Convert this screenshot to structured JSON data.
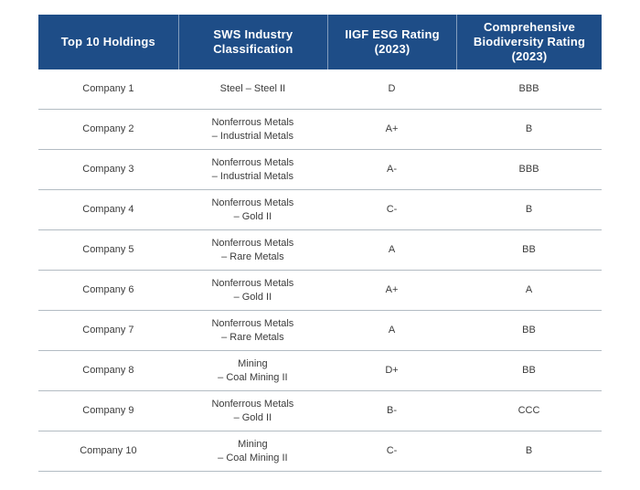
{
  "chart_data": {
    "type": "table",
    "title": "",
    "columns": [
      "Top 10 Holdings",
      "SWS Industry Classification",
      "IIGF ESG Rating (2023)",
      "Comprehensive Biodiversity Rating (2023)"
    ],
    "rows": [
      {
        "holding": "Company 1",
        "industry": "Steel – Steel II",
        "esg": "D",
        "bio": "BBB"
      },
      {
        "holding": "Company 2",
        "industry": "Nonferrous Metals\n– Industrial Metals",
        "esg": "A+",
        "bio": "B"
      },
      {
        "holding": "Company 3",
        "industry": "Nonferrous Metals\n– Industrial Metals",
        "esg": "A-",
        "bio": "BBB"
      },
      {
        "holding": "Company 4",
        "industry": "Nonferrous Metals\n– Gold II",
        "esg": "C-",
        "bio": "B"
      },
      {
        "holding": "Company 5",
        "industry": "Nonferrous Metals\n– Rare Metals",
        "esg": "A",
        "bio": "BB"
      },
      {
        "holding": "Company 6",
        "industry": "Nonferrous Metals\n– Gold II",
        "esg": "A+",
        "bio": "A"
      },
      {
        "holding": "Company 7",
        "industry": "Nonferrous Metals\n– Rare Metals",
        "esg": "A",
        "bio": "BB"
      },
      {
        "holding": "Company 8",
        "industry": "Mining\n– Coal Mining II",
        "esg": "D+",
        "bio": "BB"
      },
      {
        "holding": "Company 9",
        "industry": "Nonferrous Metals\n– Gold II",
        "esg": "B-",
        "bio": "CCC"
      },
      {
        "holding": "Company 10",
        "industry": "Mining\n– Coal Mining II",
        "esg": "C-",
        "bio": "B"
      }
    ]
  },
  "colors": {
    "header_bg": "#1e4d87",
    "header_text": "#ffffff",
    "row_divider": "#b3bcc3",
    "body_text": "#3b3b3b"
  }
}
